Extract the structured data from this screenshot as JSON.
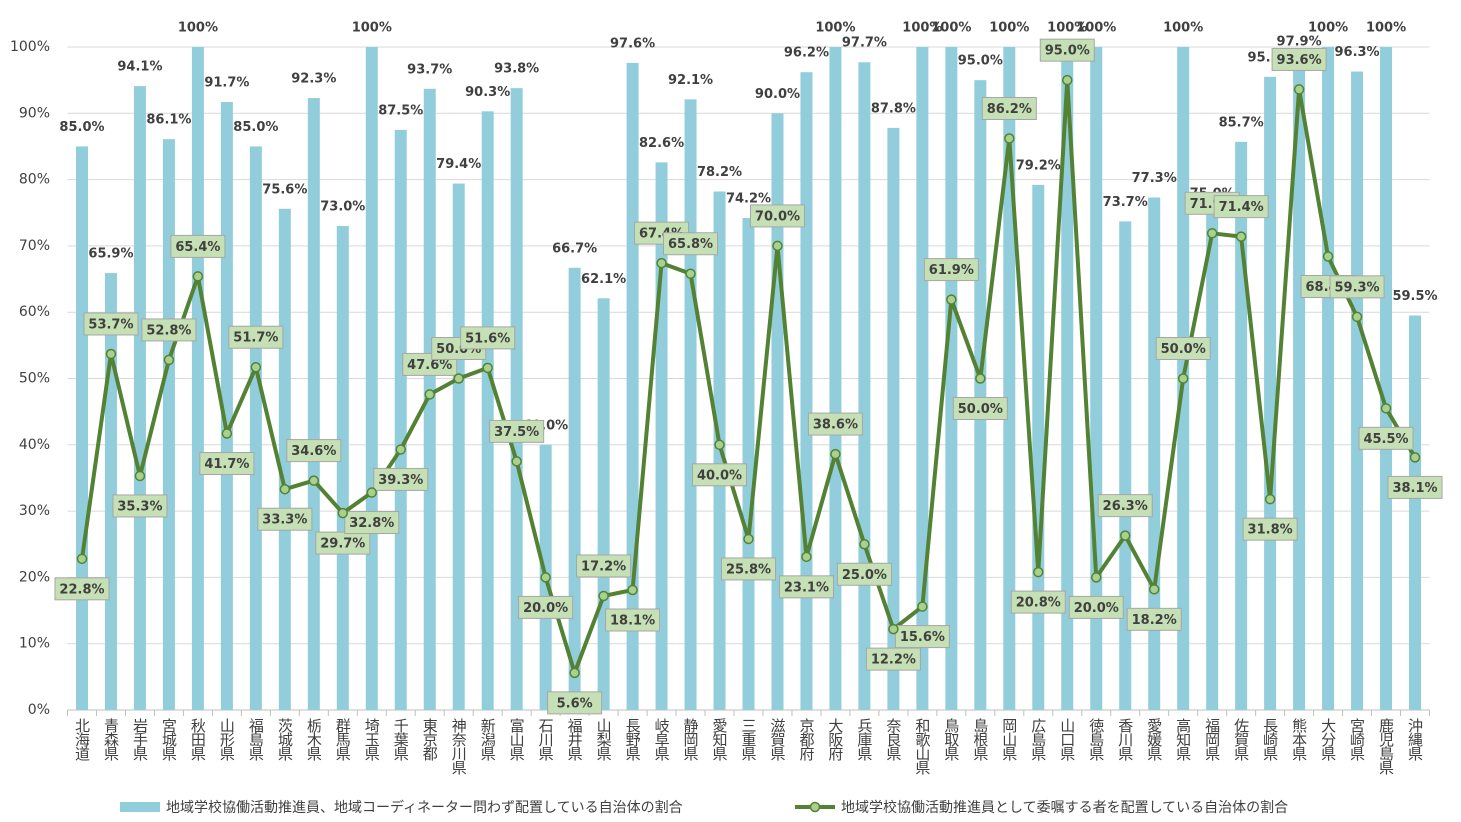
{
  "chart_data": {
    "type": "bar-line",
    "categories": [
      "北海道",
      "青森県",
      "岩手県",
      "宮城県",
      "秋田県",
      "山形県",
      "福島県",
      "茨城県",
      "栃木県",
      "群馬県",
      "埼玉県",
      "千葉県",
      "東京都",
      "神奈川県",
      "新潟県",
      "富山県",
      "石川県",
      "福井県",
      "山梨県",
      "長野県",
      "岐阜県",
      "静岡県",
      "愛知県",
      "三重県",
      "滋賀県",
      "京都府",
      "大阪府",
      "兵庫県",
      "奈良県",
      "和歌山県",
      "鳥取県",
      "島根県",
      "岡山県",
      "広島県",
      "山口県",
      "徳島県",
      "香川県",
      "愛媛県",
      "高知県",
      "福岡県",
      "佐賀県",
      "長崎県",
      "熊本県",
      "大分県",
      "宮崎県",
      "鹿児島県",
      "沖縄県"
    ],
    "series": [
      {
        "name": "地域学校協働活動推進員、地域コーディネーター問わず配置している自治体の割合",
        "type": "bar",
        "color": "#92cddc",
        "values": [
          85.0,
          65.9,
          94.1,
          86.1,
          100,
          91.7,
          85.0,
          75.6,
          92.3,
          73.0,
          100,
          87.5,
          93.7,
          79.4,
          90.3,
          93.8,
          40.0,
          66.7,
          62.1,
          97.6,
          82.6,
          92.1,
          78.2,
          74.2,
          90.0,
          96.2,
          100,
          97.7,
          87.8,
          100,
          100,
          95.0,
          100,
          79.2,
          100,
          100,
          73.7,
          77.3,
          100,
          75.0,
          85.7,
          95.5,
          97.9,
          100,
          96.3,
          100,
          59.5
        ],
        "value_labels": [
          "85.0%",
          "65.9%",
          "94.1%",
          "86.1%",
          "100%",
          "91.7%",
          "85.0%",
          "75.6%",
          "92.3%",
          "73.0%",
          "100%",
          "87.5%",
          "93.7%",
          "79.4%",
          "90.3%",
          "93.8%",
          "40.0%",
          "66.7%",
          "62.1%",
          "97.6%",
          "82.6%",
          "92.1%",
          "78.2%",
          "74.2%",
          "90.0%",
          "96.2%",
          "100%",
          "97.7%",
          "87.8%",
          "100%",
          "100%",
          "95.0%",
          "100%",
          "79.2%",
          "100%",
          "100%",
          "73.7%",
          "77.3%",
          "100%",
          "75.0%",
          "85.7%",
          "95.5%",
          "97.9%",
          "100%",
          "96.3%",
          "100%",
          "59.5%"
        ]
      },
      {
        "name": "地域学校協働活動推進員として委嘱する者を配置している自治体の割合",
        "type": "line",
        "color": "#548235",
        "values": [
          22.8,
          53.7,
          35.3,
          52.8,
          65.4,
          41.7,
          51.7,
          33.3,
          34.6,
          29.7,
          32.8,
          39.3,
          47.6,
          50.0,
          51.6,
          37.5,
          20.0,
          5.6,
          17.2,
          18.1,
          67.4,
          65.8,
          40.0,
          25.8,
          70.0,
          23.1,
          38.6,
          25.0,
          12.2,
          15.6,
          61.9,
          50.0,
          86.2,
          20.8,
          95.0,
          20.0,
          26.3,
          18.2,
          50.0,
          71.9,
          71.4,
          31.8,
          93.6,
          68.4,
          59.3,
          45.5,
          38.1
        ],
        "value_labels": [
          "22.8%",
          "53.7%",
          "35.3%",
          "52.8%",
          "65.4%",
          "41.7%",
          "51.7%",
          "33.3%",
          "34.6%",
          "29.7%",
          "32.8%",
          "39.3%",
          "47.6%",
          "50.0%",
          "51.6%",
          "37.5%",
          "20.0%",
          "5.6%",
          "17.2%",
          "18.1%",
          "67.4%",
          "65.8%",
          "40.0%",
          "25.8%",
          "70.0%",
          "23.1%",
          "38.6%",
          "25.0%",
          "12.2%",
          "15.6%",
          "61.9%",
          "50.0%",
          "86.2%",
          "20.8%",
          "95.0%",
          "20.0%",
          "26.3%",
          "18.2%",
          "50.0%",
          "71.9%",
          "71.4%",
          "31.8%",
          "93.6%",
          "68.4%",
          "59.3%",
          "45.5%",
          "38.1%"
        ]
      }
    ],
    "ylim": [
      0,
      100
    ],
    "yticks": [
      {
        "value": 0,
        "label": "0%"
      },
      {
        "value": 10,
        "label": "10%"
      },
      {
        "value": 20,
        "label": "20%"
      },
      {
        "value": 30,
        "label": "30%"
      },
      {
        "value": 40,
        "label": "40%"
      },
      {
        "value": 50,
        "label": "50%"
      },
      {
        "value": 60,
        "label": "60%"
      },
      {
        "value": 70,
        "label": "70%"
      },
      {
        "value": 80,
        "label": "80%"
      },
      {
        "value": 90,
        "label": "90%"
      },
      {
        "value": 100,
        "label": "100%"
      }
    ],
    "grid": true,
    "legend": "bottom"
  }
}
